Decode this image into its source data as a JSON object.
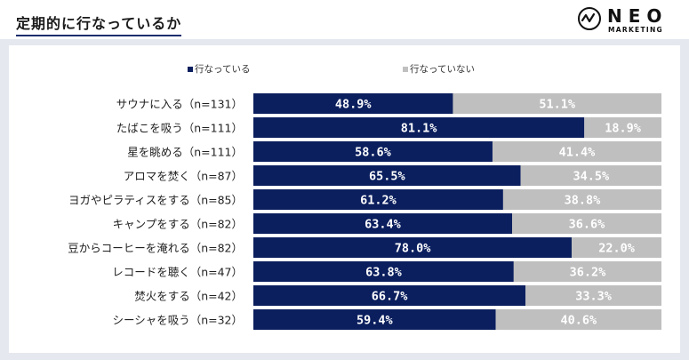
{
  "page_title": "定期的に行なっているか",
  "logo": {
    "name": "NEO",
    "sub": "MARKETING",
    "icon": "neo-marketing-logo-icon"
  },
  "colors": {
    "done": "#0b1f5e",
    "not_done": "#bfbfbf",
    "legend_not_done": "#c0c0c0"
  },
  "chart_data": {
    "type": "bar",
    "orientation": "horizontal",
    "stacked": "percent",
    "legend_position": "top",
    "categories": [
      "サウナに入る（n=131）",
      "たばこを吸う（n=111）",
      "星を眺める（n=111）",
      "アロマを焚く（n=87）",
      "ヨガやピラティスをする（n=85）",
      "キャンプをする（n=82）",
      "豆からコーヒーを淹れる（n=82）",
      "レコードを聴く（n=47）",
      "焚火をする（n=42）",
      "シーシャを吸う（n=32）"
    ],
    "series": [
      {
        "name": "行なっている",
        "values": [
          48.9,
          81.1,
          58.6,
          65.5,
          61.2,
          63.4,
          78.0,
          63.8,
          66.7,
          59.4
        ]
      },
      {
        "name": "行なっていない",
        "values": [
          51.1,
          18.9,
          41.4,
          34.5,
          38.8,
          36.6,
          22.0,
          36.2,
          33.3,
          40.6
        ]
      }
    ],
    "value_format": "%",
    "xlim": [
      0,
      100
    ],
    "grid": false
  }
}
